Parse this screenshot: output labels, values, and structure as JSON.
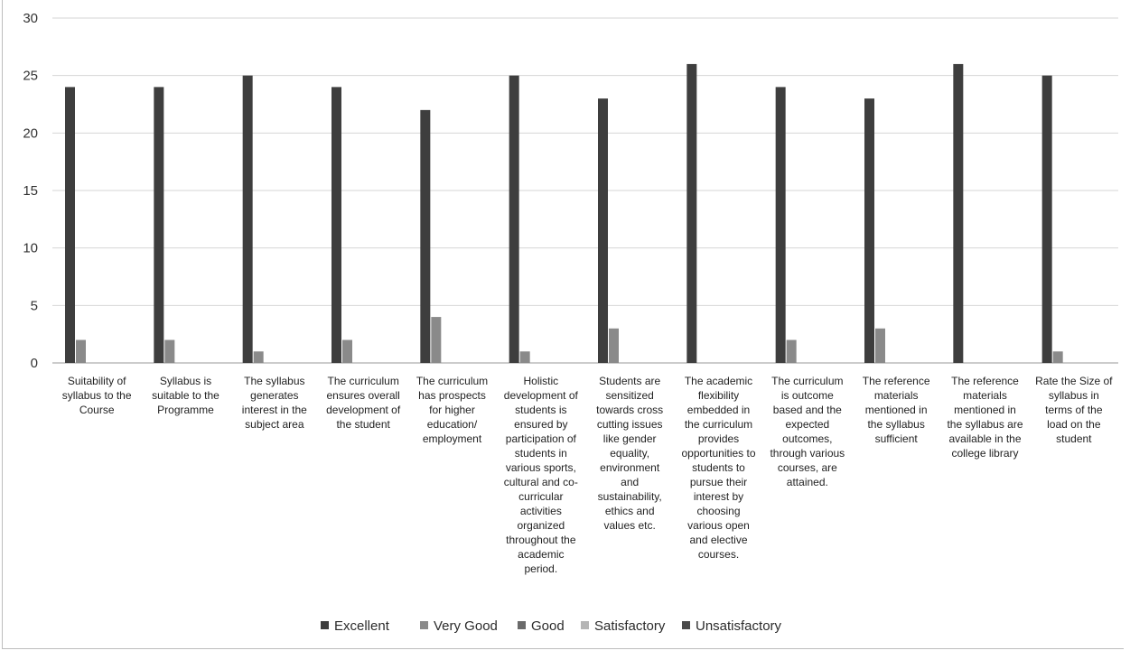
{
  "chart_data": {
    "type": "bar",
    "title": "",
    "xlabel": "",
    "ylabel": "",
    "ylim": [
      0,
      30
    ],
    "yticks": [
      "0",
      "5",
      "10",
      "15",
      "20",
      "25",
      "30"
    ],
    "grid": true,
    "legend_position": "bottom",
    "categories": [
      [
        "Suitability of",
        "syllabus to the",
        "Course"
      ],
      [
        "Syllabus is",
        "suitable to the",
        "Programme"
      ],
      [
        "The syllabus",
        "generates",
        "interest in the",
        "subject area"
      ],
      [
        "The curriculum",
        "ensures overall",
        "development of",
        "the student"
      ],
      [
        "The curriculum",
        "has prospects",
        "for higher",
        "education/",
        "employment"
      ],
      [
        "Holistic",
        "development of",
        "students is",
        "ensured by",
        "participation of",
        "students in",
        "various sports,",
        "cultural and co-",
        "curricular",
        "activities",
        "organized",
        "throughout the",
        "academic",
        "period."
      ],
      [
        "Students are",
        "sensitized",
        "towards cross",
        "cutting issues",
        "like gender",
        "equality,",
        "environment",
        "and",
        "sustainability,",
        "ethics and",
        "values etc."
      ],
      [
        "The academic",
        "flexibility",
        "embedded in",
        "the curriculum",
        "provides",
        "opportunities to",
        "students to",
        "pursue their",
        "interest by",
        "choosing",
        "various open",
        "and elective",
        "courses."
      ],
      [
        "The curriculum",
        "is outcome",
        "based and the",
        "expected",
        "outcomes,",
        "through various",
        "courses, are",
        "attained."
      ],
      [
        "The reference",
        "materials",
        "mentioned in",
        "the syllabus",
        "sufficient"
      ],
      [
        "The reference",
        "materials",
        "mentioned in",
        "the syllabus are",
        "available in the",
        "college library"
      ],
      [
        "Rate the Size of",
        "syllabus in",
        "terms of the",
        "load on the",
        "student"
      ]
    ],
    "series": [
      {
        "name": "Excellent",
        "color": "#3e3e3e",
        "values": [
          24,
          24,
          25,
          24,
          22,
          25,
          23,
          26,
          24,
          23,
          26,
          25
        ]
      },
      {
        "name": "Very Good",
        "color": "#8a8a8a",
        "values": [
          2,
          2,
          1,
          2,
          4,
          1,
          3,
          0,
          2,
          3,
          0,
          1
        ]
      },
      {
        "name": "Good",
        "color": "#6a6a6a",
        "values": [
          0,
          0,
          0,
          0,
          0,
          0,
          0,
          0,
          0,
          0,
          0,
          0
        ]
      },
      {
        "name": "Satisfactory",
        "color": "#b5b5b5",
        "values": [
          0,
          0,
          0,
          0,
          0,
          0,
          0,
          0,
          0,
          0,
          0,
          0
        ]
      },
      {
        "name": "Unsatisfactory",
        "color": "#4a4a4a",
        "values": [
          0,
          0,
          0,
          0,
          0,
          0,
          0,
          0,
          0,
          0,
          0,
          0
        ]
      }
    ]
  }
}
